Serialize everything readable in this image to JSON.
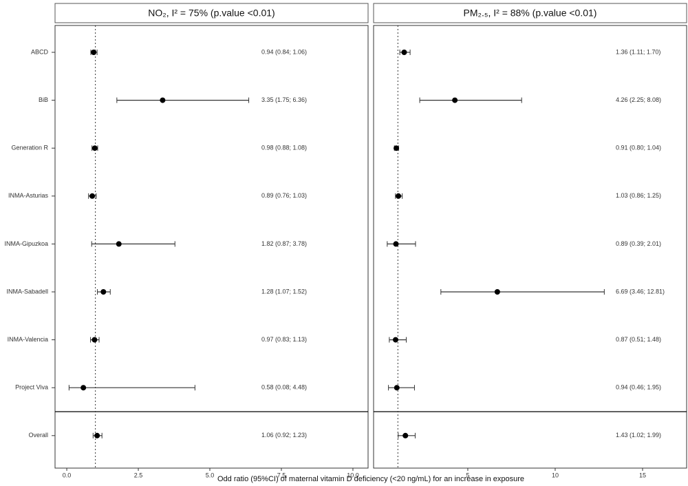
{
  "chart_data": [
    {
      "type": "forest",
      "title": "NO₂, I² = 75% (p.value <0.01)",
      "categories": [
        "ABCD",
        "BiB",
        "Generation R",
        "INMA-Asturias",
        "INMA-Gipuzkoa",
        "INMA-Sabadell",
        "INMA-Valencia",
        "Project Viva",
        "Overall"
      ],
      "values": [
        0.94,
        3.35,
        0.98,
        0.89,
        1.82,
        1.28,
        0.97,
        0.58,
        1.06
      ],
      "lower": [
        0.84,
        1.75,
        0.88,
        0.76,
        0.87,
        1.07,
        0.83,
        0.08,
        0.92
      ],
      "upper": [
        1.06,
        6.36,
        1.08,
        1.03,
        3.78,
        1.52,
        1.13,
        4.48,
        1.23
      ],
      "value_labels": [
        "0.94 (0.84; 1.06)",
        "3.35 (1.75; 6.36)",
        "0.98 (0.88; 1.08)",
        "0.89 (0.76; 1.03)",
        "1.82 (0.87; 3.78)",
        "1.28 (1.07; 1.52)",
        "0.97 (0.83; 1.13)",
        "0.58 (0.08; 4.48)",
        "1.06 (0.92; 1.23)"
      ],
      "xlim": [
        -0.41,
        10.53
      ],
      "xticks": [
        {
          "value": 0,
          "label": "0.0"
        },
        {
          "value": 2.5,
          "label": "2.5"
        },
        {
          "value": 5,
          "label": "5.0"
        },
        {
          "value": 7.5,
          "label": "7.5"
        },
        {
          "value": 10,
          "label": "10.0"
        }
      ],
      "reference": 1,
      "xlabel": "Odd ratio (95%CI) of maternal vitamin D deficiency (<20 ng/mL) for an increase in exposure"
    },
    {
      "type": "forest",
      "title": "PM₂.₅, I² = 88% (p.value <0.01)",
      "values": [
        1.36,
        4.26,
        0.91,
        1.03,
        0.89,
        6.69,
        0.87,
        0.94,
        1.43
      ],
      "lower": [
        1.11,
        2.25,
        0.8,
        0.86,
        0.39,
        3.46,
        0.51,
        0.46,
        1.02
      ],
      "upper": [
        1.7,
        8.08,
        1.04,
        1.25,
        2.01,
        12.81,
        1.48,
        1.95,
        1.99
      ],
      "value_labels": [
        "1.36 (1.11; 1.70)",
        "4.26 (2.25; 8.08)",
        "0.91 (0.80; 1.04)",
        "1.03 (0.86; 1.25)",
        "0.89 (0.39; 2.01)",
        "6.69 (3.46; 12.81)",
        "0.87 (0.51; 1.48)",
        "0.94 (0.46; 1.95)",
        "1.43 (1.02; 1.99)"
      ],
      "xlim": [
        -0.39,
        17.52
      ],
      "xticks": [
        5,
        10,
        15
      ],
      "reference": 1
    }
  ]
}
